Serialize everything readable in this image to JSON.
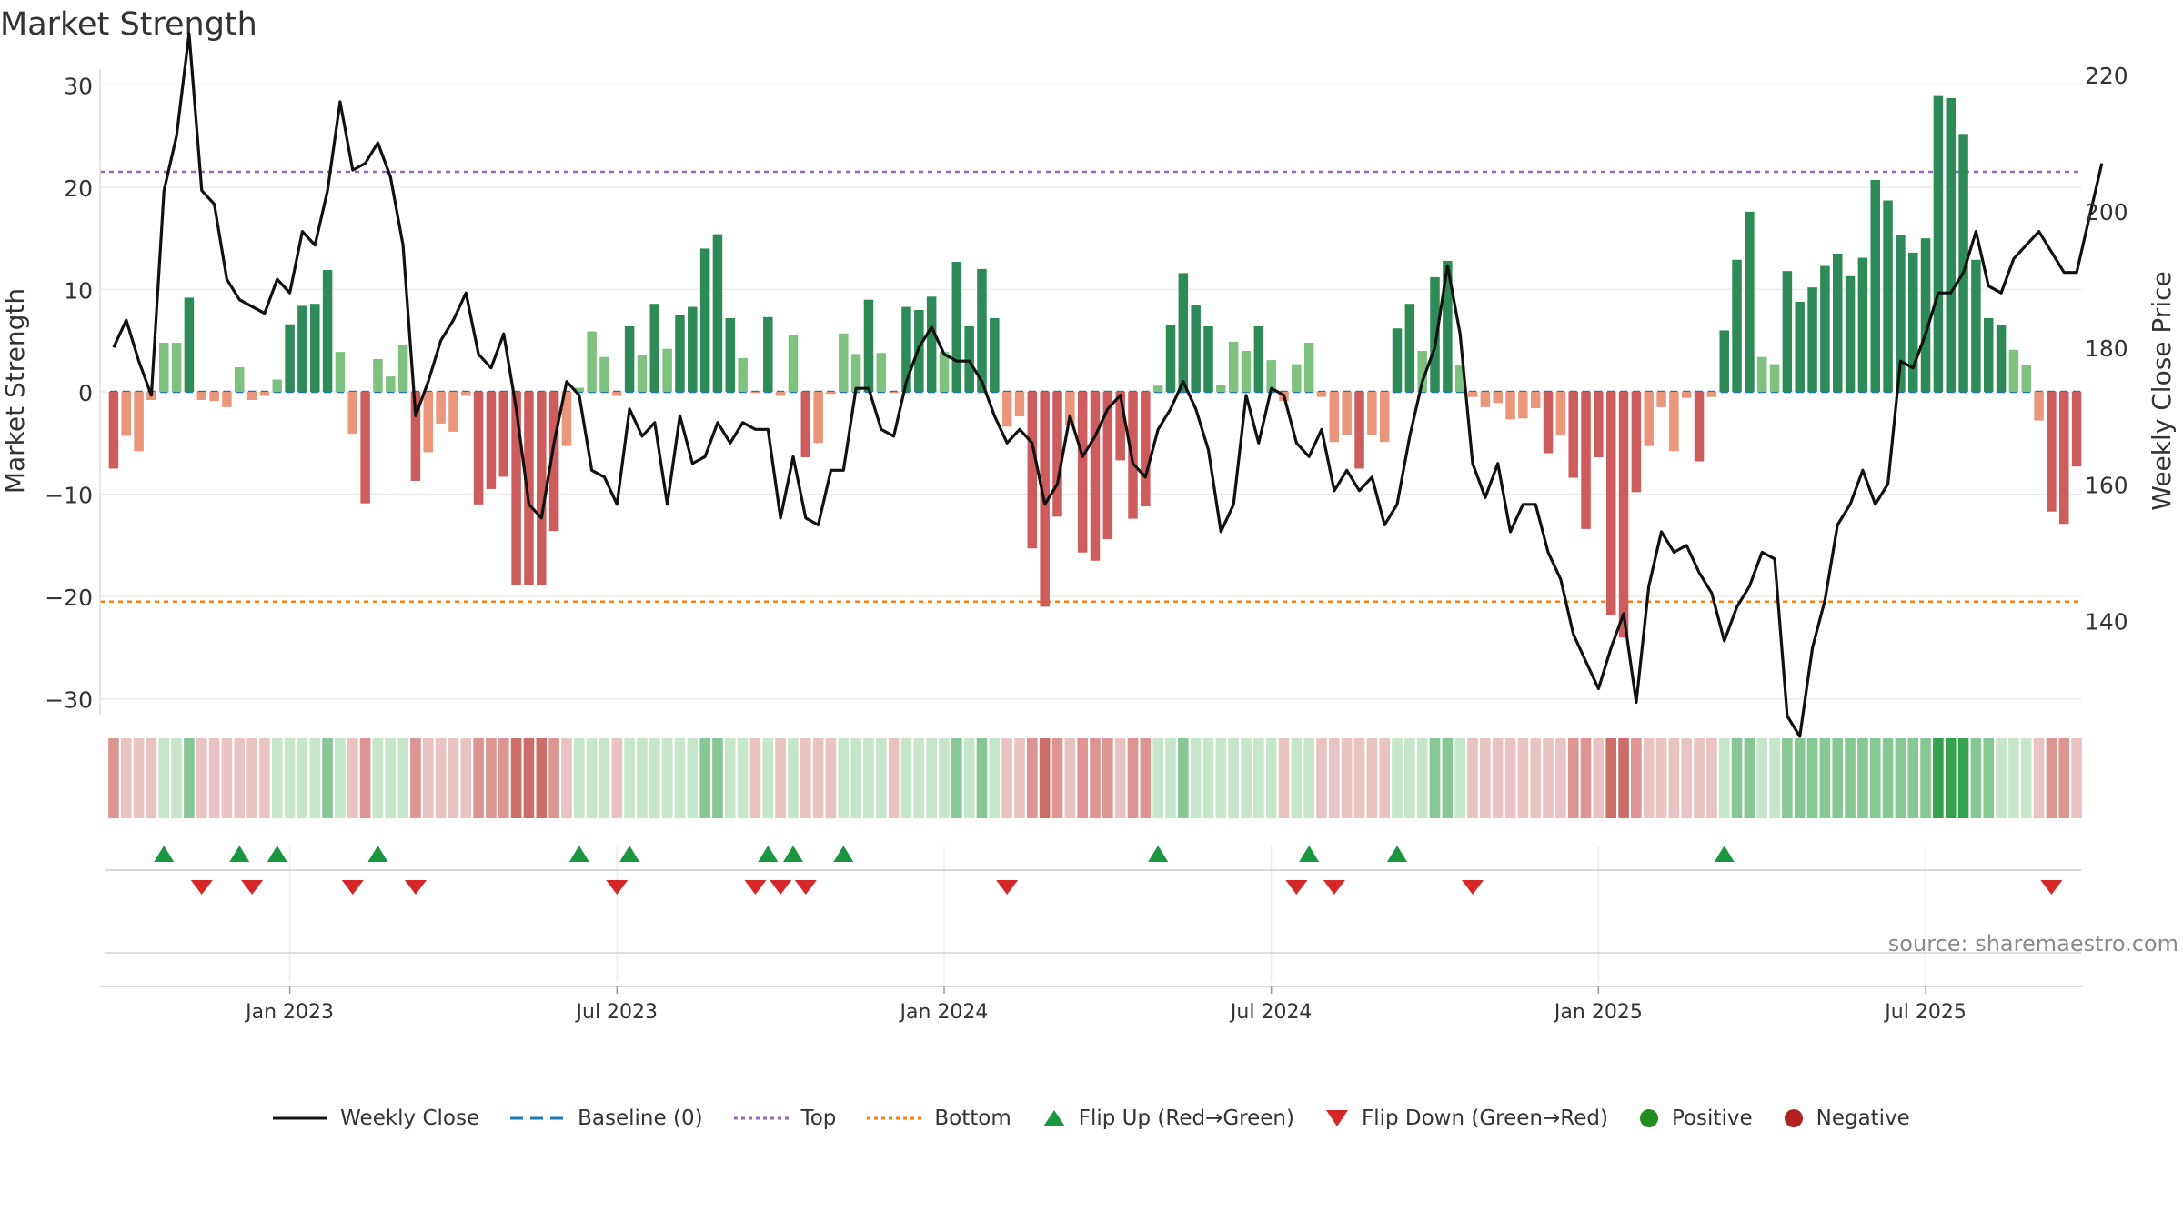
{
  "chart_data": {
    "type": "bar",
    "title": "Market Strength",
    "ylabel_left": "Market Strength",
    "ylabel_right": "Weekly Close Price",
    "source": "source: sharemaestro.com",
    "left_axis": {
      "ylim": [
        -31,
        31
      ],
      "ticks": [
        30,
        20,
        10,
        0,
        -10,
        -20,
        -30
      ],
      "tick_labels": [
        "30",
        "20",
        "10",
        "0",
        "−10",
        "−20",
        "−30"
      ]
    },
    "right_axis": {
      "ylim": [
        127,
        220
      ],
      "ticks": [
        220,
        200,
        180,
        160,
        140
      ],
      "tick_labels": [
        "220",
        "200",
        "180",
        "160",
        "140"
      ]
    },
    "x_ticks": [
      {
        "index": 14,
        "label": "Jan 2023"
      },
      {
        "index": 40,
        "label": "Jul 2023"
      },
      {
        "index": 66,
        "label": "Jan 2024"
      },
      {
        "index": 92,
        "label": "Jul 2024"
      },
      {
        "index": 118,
        "label": "Jan 2025"
      },
      {
        "index": 144,
        "label": "Jul 2025"
      }
    ],
    "top_threshold": 21.5,
    "bottom_threshold": -20.5,
    "baseline": 0,
    "strength": [
      -7.5,
      -4.3,
      -5.8,
      -0.8,
      4.8,
      4.8,
      9.2,
      -0.8,
      -0.9,
      -1.5,
      2.4,
      -0.8,
      -0.4,
      1.2,
      6.6,
      8.4,
      8.6,
      11.9,
      3.9,
      -4.1,
      -10.9,
      3.2,
      1.5,
      4.6,
      -8.7,
      -5.9,
      -3.1,
      -3.9,
      -0.4,
      -11.0,
      -9.5,
      -8.3,
      -18.9,
      -18.9,
      -18.9,
      -13.6,
      -5.3,
      0.4,
      5.9,
      3.4,
      -0.4,
      6.4,
      3.6,
      8.6,
      4.2,
      7.5,
      8.3,
      14.0,
      15.4,
      7.2,
      3.3,
      -0.1,
      7.3,
      -0.4,
      5.6,
      -6.4,
      -5.0,
      -0.2,
      5.7,
      3.7,
      9.0,
      3.8,
      -0.1,
      8.3,
      8.0,
      9.3,
      3.9,
      12.7,
      6.4,
      12.0,
      7.2,
      -3.4,
      -2.4,
      -15.3,
      -21.0,
      -12.2,
      -3.2,
      -15.7,
      -16.5,
      -14.4,
      -6.7,
      -12.4,
      -11.2,
      0.6,
      6.5,
      11.6,
      8.5,
      6.4,
      0.7,
      4.9,
      4.0,
      6.4,
      3.1,
      -0.9,
      2.7,
      4.8,
      -0.5,
      -4.9,
      -4.2,
      -7.5,
      -4.2,
      -4.9,
      6.2,
      8.6,
      4.0,
      11.2,
      12.8,
      2.6,
      -0.5,
      -1.5,
      -1.1,
      -2.7,
      -2.6,
      -1.6,
      -6.0,
      -4.2,
      -8.4,
      -13.4,
      -6.4,
      -21.8,
      -24.0,
      -9.8,
      -5.3,
      -1.5,
      -5.8,
      -0.6,
      -6.8,
      -0.5,
      6.0,
      12.9,
      17.6,
      3.4,
      2.7,
      11.8,
      8.8,
      10.2,
      12.3,
      13.5,
      11.3,
      13.1,
      20.7,
      18.7,
      15.3,
      13.6,
      15.0,
      28.9,
      28.7,
      25.2,
      12.9,
      7.2,
      6.5,
      4.1,
      2.6,
      -2.8,
      -11.7,
      -12.9,
      -7.3
    ],
    "weekly_close": [
      180,
      184,
      178,
      173,
      203,
      211,
      226,
      203,
      201,
      190,
      187,
      186,
      185,
      190,
      188,
      197,
      195,
      203,
      216,
      206,
      207,
      210,
      205,
      195,
      170,
      175,
      181,
      184,
      188,
      179,
      177,
      182,
      171,
      157,
      155,
      166,
      175,
      173,
      162,
      161,
      157,
      171,
      167,
      169,
      157,
      170,
      163,
      164,
      169,
      166,
      169,
      168,
      168,
      155,
      164,
      155,
      154,
      162,
      162,
      174,
      174,
      168,
      167,
      175,
      180,
      183,
      179,
      178,
      178,
      175,
      170,
      166,
      168,
      166,
      157,
      160,
      170,
      164,
      167,
      171,
      173,
      163,
      161,
      168,
      171,
      175,
      171,
      165,
      153,
      157,
      173,
      166,
      174,
      173,
      166,
      164,
      168,
      159,
      162,
      159,
      161,
      154,
      157,
      167,
      175,
      180,
      192,
      182,
      163,
      158,
      163,
      153,
      157,
      157,
      150,
      146,
      138,
      134,
      130,
      136,
      141,
      128,
      145,
      153,
      150,
      151,
      147,
      144,
      137,
      142,
      145,
      150,
      149,
      126,
      123,
      136,
      143,
      154,
      157,
      162,
      157,
      160,
      178,
      177,
      182,
      188,
      188,
      191,
      197,
      189,
      188,
      193,
      195,
      197,
      194,
      191,
      191,
      199,
      207
    ],
    "bands": [
      -2,
      -1,
      -1,
      -1,
      1,
      1,
      2,
      -1,
      -1,
      -1,
      -1,
      -1,
      -1,
      1,
      1,
      1,
      1,
      2,
      1,
      -1,
      -2,
      1,
      1,
      1,
      -2,
      -1,
      -1,
      -1,
      -1,
      -2,
      -2,
      -2,
      -3,
      -3,
      -3,
      -2,
      -1,
      1,
      1,
      1,
      -1,
      1,
      1,
      1,
      1,
      1,
      1,
      2,
      2,
      1,
      1,
      -1,
      1,
      -1,
      1,
      -1,
      -1,
      -1,
      1,
      1,
      1,
      1,
      -1,
      1,
      1,
      1,
      1,
      2,
      1,
      2,
      1,
      -1,
      -1,
      -2,
      -3,
      -2,
      -1,
      -2,
      -2,
      -2,
      -1,
      -2,
      -2,
      1,
      1,
      2,
      1,
      1,
      1,
      1,
      1,
      1,
      1,
      -1,
      1,
      1,
      -1,
      -1,
      -1,
      -1,
      -1,
      -1,
      1,
      1,
      1,
      2,
      2,
      1,
      -1,
      -1,
      -1,
      -1,
      -1,
      -1,
      -1,
      -1,
      -2,
      -2,
      -1,
      -3,
      -3,
      -2,
      -1,
      -1,
      -1,
      -1,
      -1,
      -1,
      1,
      2,
      2,
      1,
      1,
      2,
      2,
      2,
      2,
      2,
      2,
      2,
      2,
      2,
      2,
      2,
      2,
      3,
      3,
      3,
      2,
      2,
      1,
      1,
      1,
      -1,
      -2,
      -2,
      -1
    ],
    "flip_up_indices": [
      4,
      10,
      13,
      21,
      37,
      41,
      52,
      54,
      58,
      83,
      95,
      102,
      128
    ],
    "flip_down_indices": [
      7,
      11,
      19,
      24,
      40,
      51,
      53,
      55,
      71,
      94,
      97,
      108,
      154
    ],
    "legend": [
      "Weekly Close",
      "Baseline (0)",
      "Top",
      "Bottom",
      "Flip Up (Red→Green)",
      "Flip Down (Green→Red)",
      "Positive",
      "Negative"
    ]
  },
  "colors": {
    "green_dark": "#2e8b57",
    "green_light": "#7fc27f",
    "red_dark": "#cd5c5c",
    "red_light": "#e9967a",
    "baseline": "#1f77b4",
    "top_line": "#9467bd",
    "bottom_line": "#ff7f0e",
    "close_line": "#111111",
    "flip_up": "#1a9641",
    "flip_down": "#d62728",
    "positive": "#228b22",
    "negative": "#b22222"
  }
}
